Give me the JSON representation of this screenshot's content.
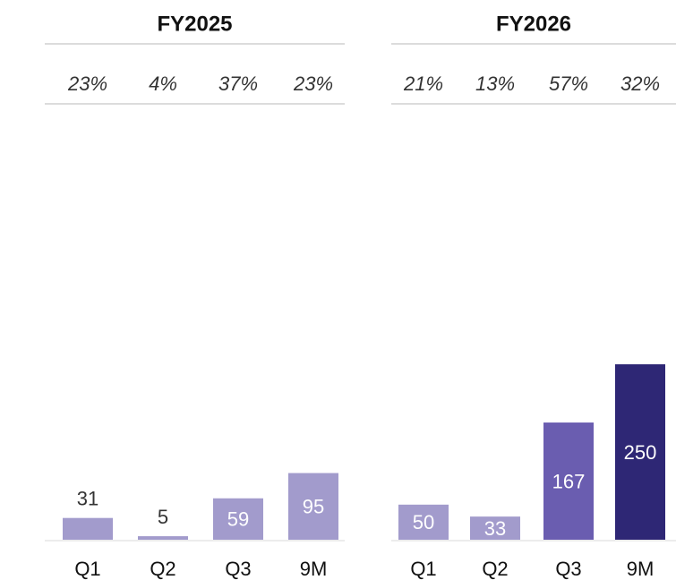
{
  "chart_data": [
    {
      "type": "bar",
      "title": "FY2025",
      "row_labels": [
        "23%",
        "4%",
        "37%",
        "23%"
      ],
      "categories": [
        "Q1",
        "Q2",
        "Q3",
        "9M"
      ],
      "values": [
        31,
        5,
        59,
        95
      ],
      "colors": [
        "#a29bcc",
        "#a29bcc",
        "#a29bcc",
        "#a29bcc"
      ],
      "ylim": [
        0,
        250
      ]
    },
    {
      "type": "bar",
      "title": "FY2026",
      "row_labels": [
        "21%",
        "13%",
        "57%",
        "32%"
      ],
      "categories": [
        "Q1",
        "Q2",
        "Q3",
        "9M"
      ],
      "values": [
        50,
        33,
        167,
        250
      ],
      "colors": [
        "#a29bcc",
        "#a29bcc",
        "#6a5db0",
        "#2e2775"
      ],
      "ylim": [
        0,
        250
      ]
    }
  ]
}
